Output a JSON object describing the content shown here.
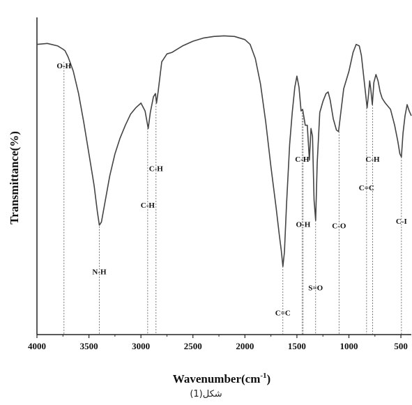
{
  "chart_data": {
    "type": "line",
    "xlabel": "Wavenumber(cm",
    "xlabel_sup": "-1",
    "xlabel_close": ")",
    "ylabel": "Transmittance(%)",
    "xlim": [
      4000,
      400
    ],
    "x_reversed": true,
    "ylim": [
      0,
      100
    ],
    "y_ticks_shown": false,
    "grid": false,
    "x_ticks": [
      4000,
      3500,
      3000,
      2500,
      2000,
      1500,
      1000,
      500
    ],
    "line_color": "#444444",
    "series": [
      {
        "points": [
          [
            4000,
            91.5
          ],
          [
            3900,
            91.8
          ],
          [
            3800,
            91.0
          ],
          [
            3750,
            90.0
          ],
          [
            3730,
            89.5
          ],
          [
            3700,
            87.5
          ],
          [
            3650,
            83.0
          ],
          [
            3600,
            76.0
          ],
          [
            3550,
            67.0
          ],
          [
            3500,
            57.0
          ],
          [
            3450,
            47.0
          ],
          [
            3420,
            39.0
          ],
          [
            3400,
            34.5
          ],
          [
            3380,
            35.5
          ],
          [
            3350,
            41.0
          ],
          [
            3300,
            50.0
          ],
          [
            3250,
            57.0
          ],
          [
            3200,
            62.0
          ],
          [
            3150,
            66.0
          ],
          [
            3100,
            69.5
          ],
          [
            3050,
            71.5
          ],
          [
            3000,
            73.0
          ],
          [
            2960,
            70.5
          ],
          [
            2930,
            65.0
          ],
          [
            2910,
            70.0
          ],
          [
            2880,
            75.0
          ],
          [
            2860,
            76.0
          ],
          [
            2850,
            73.0
          ],
          [
            2835,
            76.5
          ],
          [
            2800,
            86.0
          ],
          [
            2750,
            88.5
          ],
          [
            2700,
            89.0
          ],
          [
            2600,
            91.0
          ],
          [
            2500,
            92.5
          ],
          [
            2400,
            93.5
          ],
          [
            2300,
            94.0
          ],
          [
            2200,
            94.2
          ],
          [
            2100,
            94.0
          ],
          [
            2000,
            93.0
          ],
          [
            1950,
            91.5
          ],
          [
            1900,
            87.0
          ],
          [
            1850,
            79.0
          ],
          [
            1800,
            67.0
          ],
          [
            1750,
            53.0
          ],
          [
            1700,
            40.0
          ],
          [
            1670,
            31.5
          ],
          [
            1650,
            26.5
          ],
          [
            1635,
            21.5
          ],
          [
            1620,
            26.0
          ],
          [
            1600,
            41.0
          ],
          [
            1570,
            60.0
          ],
          [
            1545,
            70.0
          ],
          [
            1520,
            78.0
          ],
          [
            1500,
            81.5
          ],
          [
            1480,
            78.0
          ],
          [
            1460,
            70.5
          ],
          [
            1445,
            71.0
          ],
          [
            1420,
            66.0
          ],
          [
            1400,
            66.0
          ],
          [
            1380,
            55.0
          ],
          [
            1365,
            65.0
          ],
          [
            1350,
            62.5
          ],
          [
            1335,
            42.5
          ],
          [
            1320,
            36.0
          ],
          [
            1305,
            54.0
          ],
          [
            1280,
            70.0
          ],
          [
            1250,
            73.5
          ],
          [
            1220,
            76.0
          ],
          [
            1200,
            76.5
          ],
          [
            1180,
            74.0
          ],
          [
            1150,
            68.0
          ],
          [
            1120,
            64.5
          ],
          [
            1100,
            64.0
          ],
          [
            1080,
            69.5
          ],
          [
            1050,
            77.5
          ],
          [
            1000,
            83.0
          ],
          [
            960,
            89.0
          ],
          [
            930,
            91.5
          ],
          [
            900,
            91.0
          ],
          [
            880,
            88.0
          ],
          [
            860,
            82.0
          ],
          [
            840,
            76.0
          ],
          [
            825,
            71.5
          ],
          [
            810,
            76.0
          ],
          [
            800,
            80.0
          ],
          [
            790,
            77.5
          ],
          [
            775,
            72.5
          ],
          [
            760,
            79.5
          ],
          [
            740,
            82.0
          ],
          [
            720,
            80.0
          ],
          [
            700,
            76.5
          ],
          [
            680,
            74.5
          ],
          [
            650,
            73.0
          ],
          [
            600,
            71.0
          ],
          [
            560,
            66.0
          ],
          [
            530,
            61.0
          ],
          [
            510,
            57.0
          ],
          [
            495,
            56.0
          ],
          [
            480,
            63.5
          ],
          [
            460,
            69.0
          ],
          [
            440,
            72.5
          ],
          [
            420,
            70.5
          ],
          [
            400,
            69.0
          ]
        ]
      }
    ],
    "annotations": [
      {
        "text": "O-H",
        "x": 3740,
        "label_y": 84.0,
        "line_top": 86.0
      },
      {
        "text": "N-H",
        "x": 3400,
        "label_y": 19.0,
        "line_top": 35.0
      },
      {
        "text": "C-H",
        "x": 2935,
        "label_y": 40.0,
        "line_top": 65.0
      },
      {
        "text": "C-H",
        "x": 2855,
        "label_y": 51.5,
        "line_top": 73.0
      },
      {
        "text": "C=C",
        "x": 1635,
        "label_y": 6.0,
        "line_top": 21.5
      },
      {
        "text": "C-H",
        "x": 1450,
        "label_y": 54.5,
        "line_top": 70.0
      },
      {
        "text": "O-H",
        "x": 1440,
        "label_y": 34.0,
        "line_top": 70.0
      },
      {
        "text": "S=O",
        "x": 1320,
        "label_y": 14.0,
        "line_top": 36.0
      },
      {
        "text": "C-O",
        "x": 1095,
        "label_y": 33.5,
        "line_top": 64.0
      },
      {
        "text": "C=C",
        "x": 830,
        "label_y": 45.5,
        "line_top": 71.5
      },
      {
        "text": "C-H",
        "x": 772,
        "label_y": 54.5,
        "line_top": 72.5
      },
      {
        "text": "C-I",
        "x": 495,
        "label_y": 35.0,
        "line_top": 56.0
      }
    ],
    "caption": "شكل(1)"
  }
}
